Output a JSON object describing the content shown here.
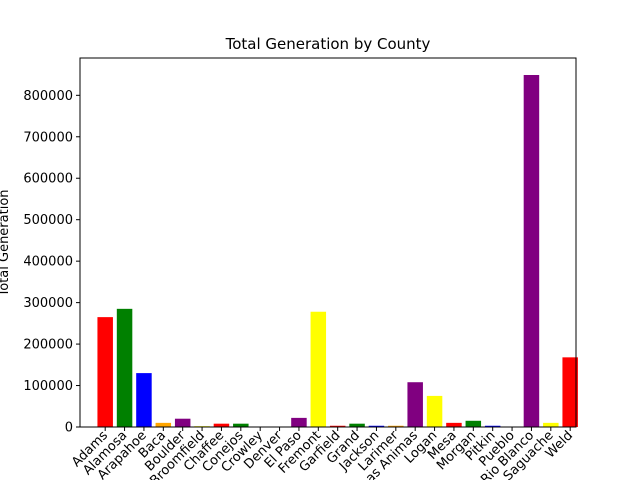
{
  "chart_data": {
    "type": "bar",
    "title": "Total Generation by County",
    "xlabel": "",
    "ylabel": "Total Generation",
    "ylim": [
      0,
      890000
    ],
    "yticks": [
      0,
      100000,
      200000,
      300000,
      400000,
      500000,
      600000,
      700000,
      800000
    ],
    "ytick_labels": [
      "0",
      "100000",
      "200000",
      "300000",
      "400000",
      "500000",
      "600000",
      "700000",
      "800000"
    ],
    "grid": false,
    "categories": [
      "Adams",
      "Alamosa",
      "Arapahoe",
      "Baca",
      "Boulder",
      "Broomfield",
      "Chaffee",
      "Conejos",
      "Crowley",
      "Denver",
      "El Paso",
      "Fremont",
      "Garfield",
      "Grand",
      "Jackson",
      "Larimer",
      "Las Animas",
      "Logan",
      "Mesa",
      "Morgan",
      "Pitkin",
      "Pueblo",
      "Rio Blanco",
      "Saguache",
      "Weld"
    ],
    "values": [
      265000,
      285000,
      130000,
      10000,
      20000,
      2000,
      8000,
      8000,
      1000,
      1000,
      22000,
      278000,
      3000,
      8000,
      3000,
      3000,
      108000,
      75000,
      10000,
      15000,
      3000,
      1000,
      849000,
      10000,
      168000
    ],
    "bar_colors": [
      "#ff0000",
      "#008000",
      "#0000ff",
      "#ffa500",
      "#800080",
      "#ffff00",
      "#ff0000",
      "#008000",
      "#0000ff",
      "#ffa500",
      "#800080",
      "#ffff00",
      "#ff0000",
      "#008000",
      "#0000ff",
      "#ffa500",
      "#800080",
      "#ffff00",
      "#ff0000",
      "#008000",
      "#0000ff",
      "#ffa500",
      "#800080",
      "#ffff00",
      "#ff0000"
    ]
  }
}
